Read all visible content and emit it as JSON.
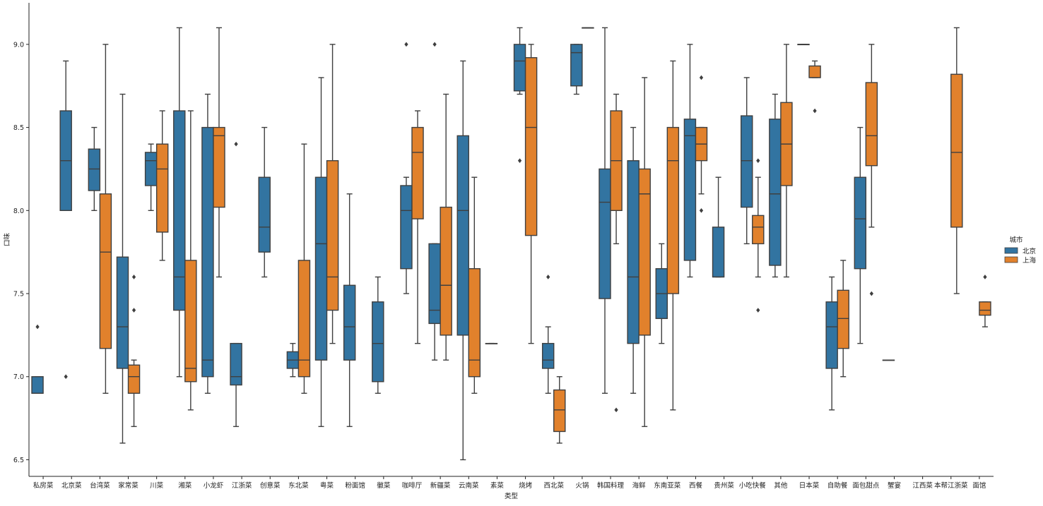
{
  "chart_data": {
    "type": "box",
    "xlabel": "类型",
    "ylabel": "口味",
    "ylim": [
      6.4,
      9.25
    ],
    "yticks": [
      6.5,
      7.0,
      7.5,
      8.0,
      8.5,
      9.0
    ],
    "ytick_labels": [
      "6.5",
      "7.0",
      "7.5",
      "8.0",
      "8.5",
      "9.0"
    ],
    "grid": false,
    "legend": {
      "title": "城市",
      "placement": "right"
    },
    "colors": {
      "北京": "#3274a1",
      "上海": "#e1812c",
      "line": "#3f3f3f"
    },
    "categories": [
      "私房菜",
      "北京菜",
      "台湾菜",
      "家常菜",
      "川菜",
      "湘菜",
      "小龙虾",
      "江浙菜",
      "创意菜",
      "东北菜",
      "粤菜",
      "粉面馆",
      "徽菜",
      "咖啡厅",
      "新疆菜",
      "云南菜",
      "素菜",
      "烧烤",
      "西北菜",
      "火锅",
      "韩国料理",
      "海鲜",
      "东南亚菜",
      "西餐",
      "贵州菜",
      "小吃快餐",
      "其他",
      "日本菜",
      "自助餐",
      "面包甜点",
      "蟹宴",
      "江西菜",
      "本帮江浙菜",
      "面馆"
    ],
    "series": [
      {
        "name": "北京",
        "boxes": [
          {
            "category": "私房菜",
            "whislo": 6.9,
            "q1": 6.9,
            "med": 6.9,
            "q3": 7.0,
            "whishi": 7.0,
            "fliers": [
              7.3
            ]
          },
          {
            "category": "北京菜",
            "whislo": 8.0,
            "q1": 8.0,
            "med": 8.3,
            "q3": 8.6,
            "whishi": 8.9,
            "fliers": [
              7.0
            ]
          },
          {
            "category": "台湾菜",
            "whislo": 8.0,
            "q1": 8.12,
            "med": 8.25,
            "q3": 8.37,
            "whishi": 8.5,
            "fliers": []
          },
          {
            "category": "家常菜",
            "whislo": 6.6,
            "q1": 7.05,
            "med": 7.3,
            "q3": 7.72,
            "whishi": 8.7,
            "fliers": []
          },
          {
            "category": "川菜",
            "whislo": 8.0,
            "q1": 8.15,
            "med": 8.3,
            "q3": 8.35,
            "whishi": 8.4,
            "fliers": []
          },
          {
            "category": "湘菜",
            "whislo": 7.0,
            "q1": 7.4,
            "med": 7.6,
            "q3": 8.6,
            "whishi": 9.1,
            "fliers": []
          },
          {
            "category": "小龙虾",
            "whislo": 6.9,
            "q1": 7.0,
            "med": 7.1,
            "q3": 8.5,
            "whishi": 8.7,
            "fliers": []
          },
          {
            "category": "江浙菜",
            "whislo": 6.7,
            "q1": 6.95,
            "med": 7.0,
            "q3": 7.2,
            "whishi": 7.2,
            "fliers": [
              8.4
            ]
          },
          {
            "category": "创意菜",
            "whislo": 7.6,
            "q1": 7.75,
            "med": 7.9,
            "q3": 8.2,
            "whishi": 8.5,
            "fliers": []
          },
          {
            "category": "东北菜",
            "whislo": 7.0,
            "q1": 7.05,
            "med": 7.1,
            "q3": 7.15,
            "whishi": 7.2,
            "fliers": []
          },
          {
            "category": "粤菜",
            "whislo": 6.7,
            "q1": 7.1,
            "med": 7.8,
            "q3": 8.2,
            "whishi": 8.8,
            "fliers": []
          },
          {
            "category": "粉面馆",
            "whislo": 6.7,
            "q1": 7.1,
            "med": 7.3,
            "q3": 7.55,
            "whishi": 8.1,
            "fliers": []
          },
          {
            "category": "徽菜",
            "whislo": 6.9,
            "q1": 6.97,
            "med": 7.2,
            "q3": 7.45,
            "whishi": 7.6,
            "fliers": []
          },
          {
            "category": "咖啡厅",
            "whislo": 7.5,
            "q1": 7.65,
            "med": 8.0,
            "q3": 8.15,
            "whishi": 8.2,
            "fliers": [
              9.0
            ]
          },
          {
            "category": "新疆菜",
            "whislo": 7.1,
            "q1": 7.32,
            "med": 7.4,
            "q3": 7.8,
            "whishi": 7.8,
            "fliers": [
              9.0
            ]
          },
          {
            "category": "云南菜",
            "whislo": 6.5,
            "q1": 7.25,
            "med": 8.0,
            "q3": 8.45,
            "whishi": 8.9,
            "fliers": []
          },
          {
            "category": "素菜",
            "whislo": 7.2,
            "q1": 7.2,
            "med": 7.2,
            "q3": 7.2,
            "whishi": 7.2,
            "fliers": []
          },
          {
            "category": "烧烤",
            "whislo": 8.7,
            "q1": 8.72,
            "med": 8.9,
            "q3": 9.0,
            "whishi": 9.1,
            "fliers": [
              8.3
            ]
          },
          {
            "category": "西北菜",
            "whislo": 6.9,
            "q1": 7.05,
            "med": 7.1,
            "q3": 7.2,
            "whishi": 7.3,
            "fliers": [
              7.6
            ]
          },
          {
            "category": "火锅",
            "whislo": 8.7,
            "q1": 8.75,
            "med": 8.95,
            "q3": 9.0,
            "whishi": 9.0,
            "fliers": []
          },
          {
            "category": "韩国料理",
            "whislo": 6.9,
            "q1": 7.47,
            "med": 8.05,
            "q3": 8.25,
            "whishi": 9.1,
            "fliers": []
          },
          {
            "category": "海鲜",
            "whislo": 6.9,
            "q1": 7.2,
            "med": 7.6,
            "q3": 8.3,
            "whishi": 8.5,
            "fliers": []
          },
          {
            "category": "东南亚菜",
            "whislo": 7.2,
            "q1": 7.35,
            "med": 7.5,
            "q3": 7.65,
            "whishi": 7.8,
            "fliers": []
          },
          {
            "category": "西餐",
            "whislo": 7.6,
            "q1": 7.7,
            "med": 8.45,
            "q3": 8.55,
            "whishi": 9.0,
            "fliers": []
          },
          {
            "category": "贵州菜",
            "whislo": 7.6,
            "q1": 7.6,
            "med": 7.6,
            "q3": 7.9,
            "whishi": 8.2,
            "fliers": []
          },
          {
            "category": "小吃快餐",
            "whislo": 7.8,
            "q1": 8.02,
            "med": 8.3,
            "q3": 8.57,
            "whishi": 8.8,
            "fliers": []
          },
          {
            "category": "其他",
            "whislo": 7.6,
            "q1": 7.67,
            "med": 8.1,
            "q3": 8.55,
            "whishi": 8.7,
            "fliers": []
          },
          {
            "category": "日本菜",
            "whislo": 9.0,
            "q1": 9.0,
            "med": 9.0,
            "q3": 9.0,
            "whishi": 9.0,
            "fliers": []
          },
          {
            "category": "自助餐",
            "whislo": 6.8,
            "q1": 7.05,
            "med": 7.3,
            "q3": 7.45,
            "whishi": 7.6,
            "fliers": []
          },
          {
            "category": "面包甜点",
            "whislo": 7.2,
            "q1": 7.65,
            "med": 7.95,
            "q3": 8.2,
            "whishi": 8.5,
            "fliers": []
          },
          {
            "category": "蟹宴",
            "whislo": 7.1,
            "q1": 7.1,
            "med": 7.1,
            "q3": 7.1,
            "whishi": 7.1,
            "fliers": []
          }
        ]
      },
      {
        "name": "上海",
        "boxes": [
          {
            "category": "台湾菜",
            "whislo": 6.9,
            "q1": 7.17,
            "med": 7.75,
            "q3": 8.1,
            "whishi": 9.0,
            "fliers": []
          },
          {
            "category": "家常菜",
            "whislo": 6.7,
            "q1": 6.9,
            "med": 7.0,
            "q3": 7.07,
            "whishi": 7.1,
            "fliers": [
              7.4,
              7.6
            ]
          },
          {
            "category": "川菜",
            "whislo": 7.7,
            "q1": 7.87,
            "med": 8.25,
            "q3": 8.4,
            "whishi": 8.6,
            "fliers": []
          },
          {
            "category": "湘菜",
            "whislo": 6.8,
            "q1": 6.97,
            "med": 7.05,
            "q3": 7.7,
            "whishi": 8.6,
            "fliers": []
          },
          {
            "category": "小龙虾",
            "whislo": 7.6,
            "q1": 8.02,
            "med": 8.45,
            "q3": 8.5,
            "whishi": 9.1,
            "fliers": []
          },
          {
            "category": "东北菜",
            "whislo": 6.9,
            "q1": 7.0,
            "med": 7.1,
            "q3": 7.7,
            "whishi": 8.4,
            "fliers": []
          },
          {
            "category": "粤菜",
            "whislo": 7.2,
            "q1": 7.4,
            "med": 7.6,
            "q3": 8.3,
            "whishi": 9.0,
            "fliers": []
          },
          {
            "category": "咖啡厅",
            "whislo": 7.2,
            "q1": 7.95,
            "med": 8.35,
            "q3": 8.5,
            "whishi": 8.6,
            "fliers": []
          },
          {
            "category": "新疆菜",
            "whislo": 7.1,
            "q1": 7.25,
            "med": 7.55,
            "q3": 8.02,
            "whishi": 8.7,
            "fliers": []
          },
          {
            "category": "云南菜",
            "whislo": 6.9,
            "q1": 7.0,
            "med": 7.1,
            "q3": 7.65,
            "whishi": 8.2,
            "fliers": []
          },
          {
            "category": "烧烤",
            "whislo": 7.2,
            "q1": 7.85,
            "med": 8.5,
            "q3": 8.92,
            "whishi": 9.0,
            "fliers": []
          },
          {
            "category": "西北菜",
            "whislo": 6.6,
            "q1": 6.67,
            "med": 6.8,
            "q3": 6.92,
            "whishi": 7.0,
            "fliers": []
          },
          {
            "category": "火锅",
            "whislo": 9.1,
            "q1": 9.1,
            "med": 9.1,
            "q3": 9.1,
            "whishi": 9.1,
            "fliers": []
          },
          {
            "category": "韩国料理",
            "whislo": 7.8,
            "q1": 8.0,
            "med": 8.3,
            "q3": 8.6,
            "whishi": 8.7,
            "fliers": [
              6.8
            ]
          },
          {
            "category": "海鲜",
            "whislo": 6.7,
            "q1": 7.25,
            "med": 8.1,
            "q3": 8.25,
            "whishi": 8.8,
            "fliers": []
          },
          {
            "category": "东南亚菜",
            "whislo": 6.8,
            "q1": 7.5,
            "med": 8.3,
            "q3": 8.5,
            "whishi": 8.9,
            "fliers": []
          },
          {
            "category": "西餐",
            "whislo": 8.1,
            "q1": 8.3,
            "med": 8.4,
            "q3": 8.5,
            "whishi": 8.5,
            "fliers": [
              8.0,
              8.8
            ]
          },
          {
            "category": "小吃快餐",
            "whislo": 7.6,
            "q1": 7.8,
            "med": 7.9,
            "q3": 7.97,
            "whishi": 8.2,
            "fliers": [
              7.4,
              8.3
            ]
          },
          {
            "category": "其他",
            "whislo": 7.6,
            "q1": 8.15,
            "med": 8.4,
            "q3": 8.65,
            "whishi": 9.0,
            "fliers": []
          },
          {
            "category": "日本菜",
            "whislo": 8.8,
            "q1": 8.8,
            "med": 8.8,
            "q3": 8.87,
            "whishi": 8.9,
            "fliers": [
              8.6
            ]
          },
          {
            "category": "自助餐",
            "whislo": 7.0,
            "q1": 7.17,
            "med": 7.35,
            "q3": 7.52,
            "whishi": 7.7,
            "fliers": []
          },
          {
            "category": "面包甜点",
            "whislo": 7.9,
            "q1": 8.27,
            "med": 8.45,
            "q3": 8.77,
            "whishi": 9.0,
            "fliers": [
              7.5
            ]
          },
          {
            "category": "本帮江浙菜",
            "whislo": 7.5,
            "q1": 7.9,
            "med": 8.35,
            "q3": 8.82,
            "whishi": 9.1,
            "fliers": []
          },
          {
            "category": "面馆",
            "whislo": 7.3,
            "q1": 7.37,
            "med": 7.4,
            "q3": 7.45,
            "whishi": 7.45,
            "fliers": [
              7.6
            ]
          }
        ]
      }
    ]
  }
}
